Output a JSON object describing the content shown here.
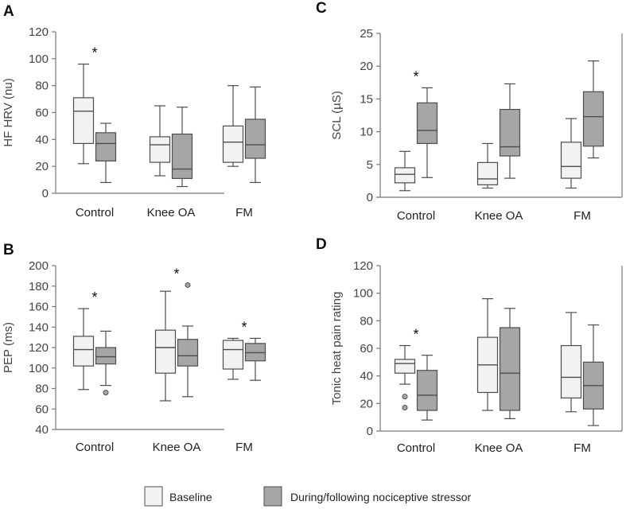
{
  "legend": {
    "baseline": "Baseline",
    "stressor": "During/following nociceptive stressor"
  },
  "colors": {
    "baseline_fill": "#f2f2f2",
    "stressor_fill": "#a6a6a6",
    "stroke": "#4d4d4d",
    "axis": "#777777"
  },
  "chart_data": [
    {
      "panel": "A",
      "type": "boxplot",
      "ylabel": "HF HRV (nu)",
      "ylim": [
        0,
        120
      ],
      "yticks": [
        0,
        20,
        40,
        60,
        80,
        100,
        120
      ],
      "categories": [
        "Control",
        "Knee OA",
        "FM"
      ],
      "series": [
        {
          "name": "Baseline",
          "boxes": [
            {
              "min": 22,
              "q1": 37,
              "median": 61,
              "q3": 71,
              "max": 96,
              "outliers": []
            },
            {
              "min": 13,
              "q1": 23,
              "median": 36,
              "q3": 42,
              "max": 65,
              "outliers": []
            },
            {
              "min": 20,
              "q1": 23,
              "median": 38,
              "q3": 50,
              "max": 80,
              "outliers": []
            }
          ]
        },
        {
          "name": "During/following nociceptive stressor",
          "boxes": [
            {
              "min": 8,
              "q1": 24,
              "median": 37,
              "q3": 45,
              "max": 52,
              "outliers": []
            },
            {
              "min": 5,
              "q1": 11,
              "median": 18,
              "q3": 44,
              "max": 64,
              "outliers": []
            },
            {
              "min": 8,
              "q1": 26,
              "median": 36,
              "q3": 55,
              "max": 79,
              "outliers": []
            }
          ]
        }
      ],
      "significance": [
        "*",
        "",
        ""
      ]
    },
    {
      "panel": "C",
      "type": "boxplot",
      "ylabel": "SCL (µS)",
      "ylim": [
        0,
        25
      ],
      "yticks": [
        0,
        5,
        10,
        15,
        20,
        25
      ],
      "categories": [
        "Control",
        "Knee OA",
        "FM"
      ],
      "series": [
        {
          "name": "Baseline",
          "boxes": [
            {
              "min": 1.0,
              "q1": 2.2,
              "median": 3.5,
              "q3": 4.5,
              "max": 7.0,
              "outliers": []
            },
            {
              "min": 1.4,
              "q1": 1.9,
              "median": 2.8,
              "q3": 5.3,
              "max": 8.2,
              "outliers": []
            },
            {
              "min": 1.4,
              "q1": 2.9,
              "median": 4.7,
              "q3": 8.4,
              "max": 12.0,
              "outliers": []
            }
          ]
        },
        {
          "name": "During/following nociceptive stressor",
          "boxes": [
            {
              "min": 3.0,
              "q1": 8.2,
              "median": 10.2,
              "q3": 14.4,
              "max": 16.7,
              "outliers": []
            },
            {
              "min": 2.9,
              "q1": 6.3,
              "median": 7.7,
              "q3": 13.4,
              "max": 17.3,
              "outliers": []
            },
            {
              "min": 6.0,
              "q1": 7.8,
              "median": 12.3,
              "q3": 16.1,
              "max": 20.8,
              "outliers": []
            }
          ]
        }
      ],
      "significance": [
        "*",
        "",
        ""
      ]
    },
    {
      "panel": "B",
      "type": "boxplot",
      "ylabel": "PEP (ms)",
      "ylim": [
        40,
        200
      ],
      "yticks": [
        40,
        60,
        80,
        100,
        120,
        140,
        160,
        180,
        200
      ],
      "categories": [
        "Control",
        "Knee OA",
        "FM"
      ],
      "series": [
        {
          "name": "Baseline",
          "boxes": [
            {
              "min": 79,
              "q1": 102,
              "median": 118,
              "q3": 131,
              "max": 158,
              "outliers": []
            },
            {
              "min": 68,
              "q1": 95,
              "median": 120,
              "q3": 137,
              "max": 175,
              "outliers": []
            },
            {
              "min": 89,
              "q1": 99,
              "median": 118,
              "q3": 127,
              "max": 129,
              "outliers": []
            }
          ]
        },
        {
          "name": "During/following nociceptive stressor",
          "boxes": [
            {
              "min": 83,
              "q1": 104,
              "median": 111,
              "q3": 120,
              "max": 136,
              "outliers": [
                76
              ]
            },
            {
              "min": 72,
              "q1": 102,
              "median": 112,
              "q3": 128,
              "max": 141,
              "outliers": [
                181
              ]
            },
            {
              "min": 88,
              "q1": 107,
              "median": 115,
              "q3": 124,
              "max": 129,
              "outliers": []
            }
          ]
        }
      ],
      "significance": [
        "*",
        "*",
        "*"
      ]
    },
    {
      "panel": "D",
      "type": "boxplot",
      "ylabel": "Tonic heat pain rating",
      "ylim": [
        0,
        120
      ],
      "yticks": [
        0,
        20,
        40,
        60,
        80,
        100,
        120
      ],
      "categories": [
        "Control",
        "Knee OA",
        "FM"
      ],
      "series": [
        {
          "name": "Baseline",
          "boxes": [
            {
              "min": 34,
              "q1": 42,
              "median": 49,
              "q3": 52,
              "max": 62,
              "outliers": [
                25,
                17
              ]
            },
            {
              "min": 15,
              "q1": 28,
              "median": 48,
              "q3": 68,
              "max": 96,
              "outliers": []
            },
            {
              "min": 14,
              "q1": 24,
              "median": 39,
              "q3": 62,
              "max": 86,
              "outliers": []
            }
          ]
        },
        {
          "name": "During/following nociceptive stressor",
          "boxes": [
            {
              "min": 8,
              "q1": 15,
              "median": 26,
              "q3": 44,
              "max": 55,
              "outliers": []
            },
            {
              "min": 9,
              "q1": 15,
              "median": 42,
              "q3": 75,
              "max": 89,
              "outliers": []
            },
            {
              "min": 4,
              "q1": 16,
              "median": 33,
              "q3": 50,
              "max": 77,
              "outliers": []
            }
          ]
        }
      ],
      "significance": [
        "*",
        "",
        ""
      ]
    }
  ]
}
